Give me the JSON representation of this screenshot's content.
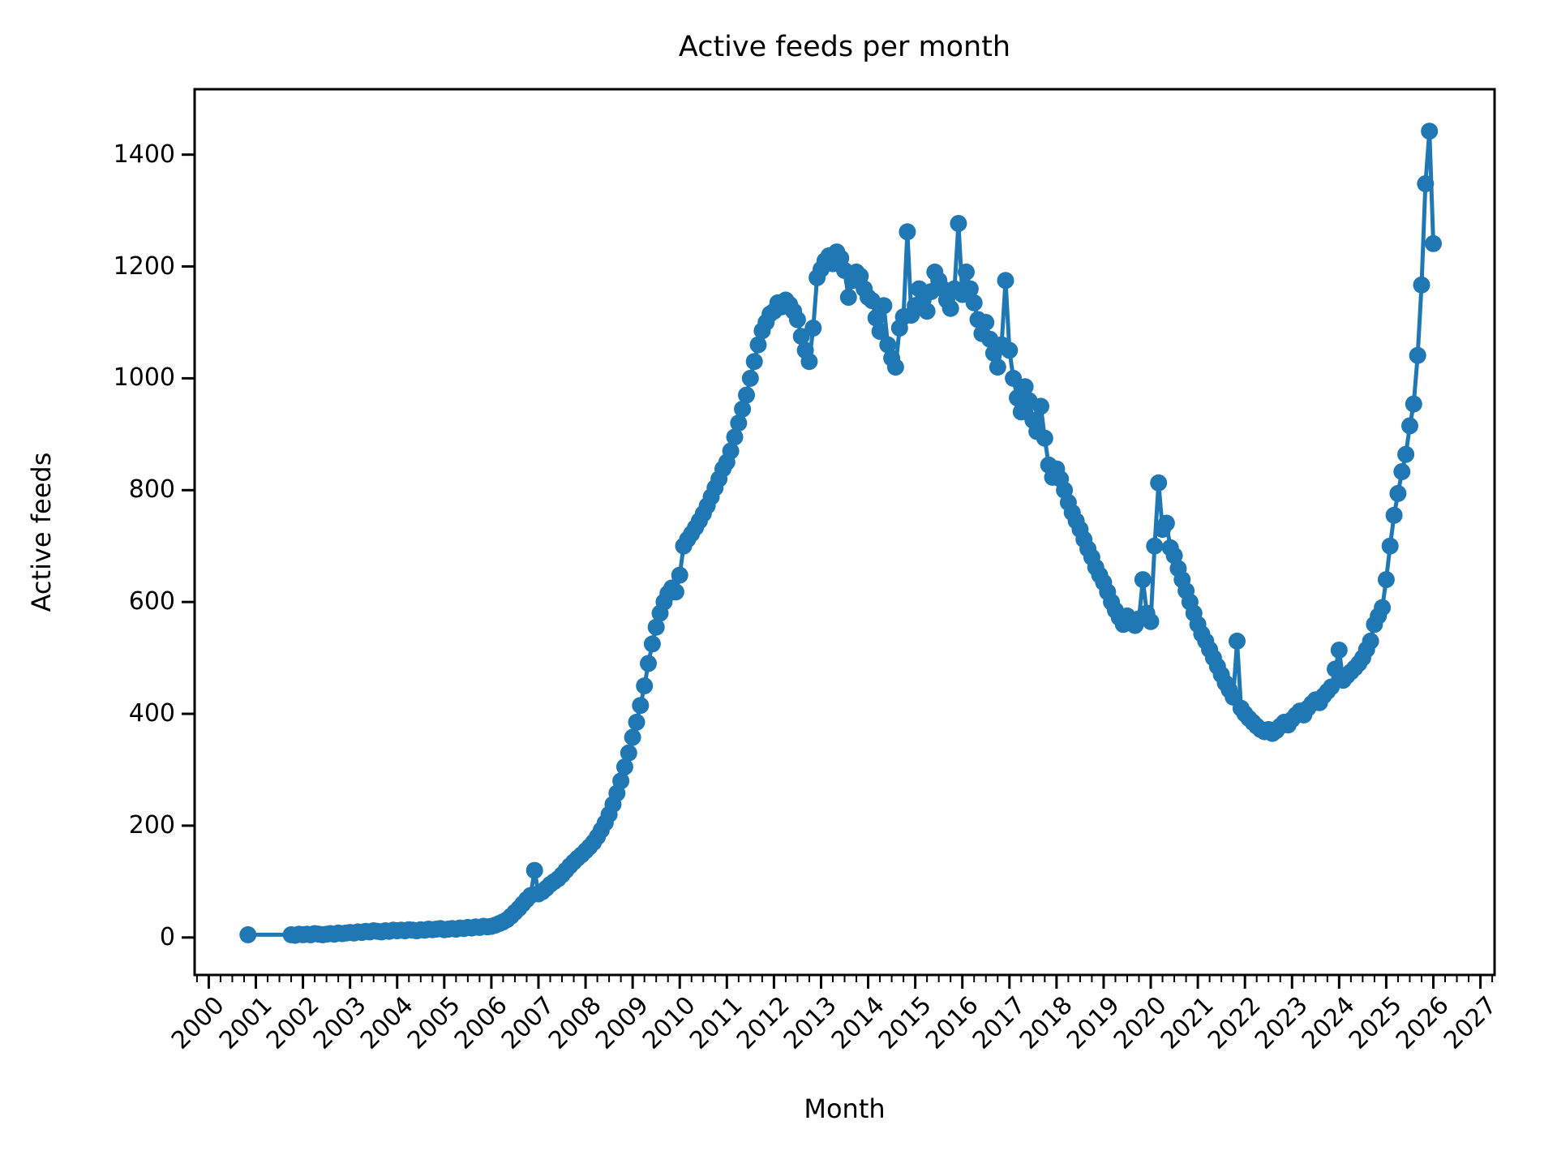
{
  "figure": {
    "title": "Active feeds per month",
    "background_color": "#ffffff",
    "frame_color": "#000000"
  },
  "chart_data": {
    "type": "line",
    "title": "Active feeds per month",
    "xlabel": "Month",
    "ylabel": "Active feeds",
    "grid": false,
    "legend": null,
    "marker": "o",
    "line_color": "#1f77b4",
    "xlim": [
      1999.7,
      2027.3
    ],
    "ylim": [
      -67,
      1517
    ],
    "x_ticks": [
      2000,
      2001,
      2002,
      2003,
      2004,
      2005,
      2006,
      2007,
      2008,
      2009,
      2010,
      2011,
      2012,
      2013,
      2014,
      2015,
      2016,
      2017,
      2018,
      2019,
      2020,
      2021,
      2022,
      2023,
      2024,
      2025,
      2026,
      2027
    ],
    "x_minor_tick_interval": 0.25,
    "x_tick_rotation": 45,
    "y_ticks": [
      0,
      200,
      400,
      600,
      800,
      1000,
      1200,
      1400
    ],
    "series": [
      {
        "name": "active-feeds",
        "color": "#1f77b4",
        "points": [
          [
            2000.833,
            5
          ],
          [
            2001.75,
            5
          ],
          [
            2001.833,
            4
          ],
          [
            2001.917,
            6
          ],
          [
            2002.0,
            5
          ],
          [
            2002.083,
            6
          ],
          [
            2002.167,
            5
          ],
          [
            2002.25,
            7
          ],
          [
            2002.333,
            6
          ],
          [
            2002.417,
            5
          ],
          [
            2002.5,
            6
          ],
          [
            2002.583,
            7
          ],
          [
            2002.667,
            6
          ],
          [
            2002.75,
            8
          ],
          [
            2002.833,
            7
          ],
          [
            2002.917,
            8
          ],
          [
            2003.0,
            9
          ],
          [
            2003.083,
            8
          ],
          [
            2003.167,
            10
          ],
          [
            2003.25,
            9
          ],
          [
            2003.333,
            11
          ],
          [
            2003.417,
            10
          ],
          [
            2003.5,
            12
          ],
          [
            2003.583,
            11
          ],
          [
            2003.667,
            10
          ],
          [
            2003.75,
            12
          ],
          [
            2003.833,
            11
          ],
          [
            2003.917,
            13
          ],
          [
            2004.0,
            12
          ],
          [
            2004.083,
            13
          ],
          [
            2004.167,
            12
          ],
          [
            2004.25,
            14
          ],
          [
            2004.333,
            13
          ],
          [
            2004.417,
            12
          ],
          [
            2004.5,
            14
          ],
          [
            2004.583,
            13
          ],
          [
            2004.667,
            15
          ],
          [
            2004.75,
            14
          ],
          [
            2004.833,
            15
          ],
          [
            2004.917,
            16
          ],
          [
            2005.0,
            14
          ],
          [
            2005.083,
            15
          ],
          [
            2005.167,
            16
          ],
          [
            2005.25,
            15
          ],
          [
            2005.333,
            17
          ],
          [
            2005.417,
            16
          ],
          [
            2005.5,
            18
          ],
          [
            2005.583,
            17
          ],
          [
            2005.667,
            19
          ],
          [
            2005.75,
            18
          ],
          [
            2005.833,
            20
          ],
          [
            2005.917,
            19
          ],
          [
            2006.0,
            20
          ],
          [
            2006.083,
            22
          ],
          [
            2006.167,
            25
          ],
          [
            2006.25,
            28
          ],
          [
            2006.333,
            32
          ],
          [
            2006.417,
            38
          ],
          [
            2006.5,
            45
          ],
          [
            2006.583,
            52
          ],
          [
            2006.667,
            60
          ],
          [
            2006.75,
            68
          ],
          [
            2006.833,
            75
          ],
          [
            2006.917,
            120
          ],
          [
            2007.0,
            78
          ],
          [
            2007.083,
            82
          ],
          [
            2007.167,
            88
          ],
          [
            2007.25,
            95
          ],
          [
            2007.333,
            100
          ],
          [
            2007.417,
            105
          ],
          [
            2007.5,
            112
          ],
          [
            2007.583,
            120
          ],
          [
            2007.667,
            128
          ],
          [
            2007.75,
            135
          ],
          [
            2007.833,
            142
          ],
          [
            2007.917,
            148
          ],
          [
            2008.0,
            155
          ],
          [
            2008.083,
            162
          ],
          [
            2008.167,
            170
          ],
          [
            2008.25,
            180
          ],
          [
            2008.333,
            192
          ],
          [
            2008.417,
            205
          ],
          [
            2008.5,
            220
          ],
          [
            2008.583,
            238
          ],
          [
            2008.667,
            258
          ],
          [
            2008.75,
            280
          ],
          [
            2008.833,
            305
          ],
          [
            2008.917,
            330
          ],
          [
            2009.0,
            358
          ],
          [
            2009.083,
            385
          ],
          [
            2009.167,
            415
          ],
          [
            2009.25,
            450
          ],
          [
            2009.333,
            490
          ],
          [
            2009.417,
            525
          ],
          [
            2009.5,
            555
          ],
          [
            2009.583,
            580
          ],
          [
            2009.667,
            600
          ],
          [
            2009.75,
            615
          ],
          [
            2009.833,
            625
          ],
          [
            2009.917,
            618
          ],
          [
            2010.0,
            648
          ],
          [
            2010.083,
            700
          ],
          [
            2010.167,
            712
          ],
          [
            2010.25,
            722
          ],
          [
            2010.333,
            733
          ],
          [
            2010.417,
            745
          ],
          [
            2010.5,
            758
          ],
          [
            2010.583,
            772
          ],
          [
            2010.667,
            788
          ],
          [
            2010.75,
            804
          ],
          [
            2010.833,
            820
          ],
          [
            2010.917,
            838
          ],
          [
            2011.0,
            850
          ],
          [
            2011.083,
            870
          ],
          [
            2011.167,
            895
          ],
          [
            2011.25,
            920
          ],
          [
            2011.333,
            945
          ],
          [
            2011.417,
            970
          ],
          [
            2011.5,
            1000
          ],
          [
            2011.583,
            1030
          ],
          [
            2011.667,
            1060
          ],
          [
            2011.75,
            1085
          ],
          [
            2011.833,
            1100
          ],
          [
            2011.917,
            1115
          ],
          [
            2012.0,
            1120
          ],
          [
            2012.083,
            1135
          ],
          [
            2012.167,
            1128
          ],
          [
            2012.25,
            1140
          ],
          [
            2012.333,
            1132
          ],
          [
            2012.417,
            1120
          ],
          [
            2012.5,
            1105
          ],
          [
            2012.583,
            1075
          ],
          [
            2012.667,
            1050
          ],
          [
            2012.75,
            1030
          ],
          [
            2012.833,
            1090
          ],
          [
            2012.917,
            1180
          ],
          [
            2013.0,
            1195
          ],
          [
            2013.083,
            1210
          ],
          [
            2013.167,
            1219
          ],
          [
            2013.25,
            1205
          ],
          [
            2013.333,
            1226
          ],
          [
            2013.417,
            1215
          ],
          [
            2013.5,
            1193
          ],
          [
            2013.583,
            1145
          ],
          [
            2013.667,
            1175
          ],
          [
            2013.75,
            1190
          ],
          [
            2013.833,
            1183
          ],
          [
            2013.917,
            1160
          ],
          [
            2014.0,
            1145
          ],
          [
            2014.083,
            1139
          ],
          [
            2014.167,
            1108
          ],
          [
            2014.25,
            1084
          ],
          [
            2014.333,
            1130
          ],
          [
            2014.417,
            1060
          ],
          [
            2014.5,
            1036
          ],
          [
            2014.583,
            1020
          ],
          [
            2014.667,
            1090
          ],
          [
            2014.75,
            1110
          ],
          [
            2014.833,
            1262
          ],
          [
            2014.917,
            1113
          ],
          [
            2015.0,
            1130
          ],
          [
            2015.083,
            1160
          ],
          [
            2015.167,
            1140
          ],
          [
            2015.25,
            1120
          ],
          [
            2015.333,
            1155
          ],
          [
            2015.417,
            1190
          ],
          [
            2015.5,
            1175
          ],
          [
            2015.583,
            1160
          ],
          [
            2015.667,
            1140
          ],
          [
            2015.75,
            1125
          ],
          [
            2015.833,
            1160
          ],
          [
            2015.917,
            1277
          ],
          [
            2016.0,
            1150
          ],
          [
            2016.083,
            1190
          ],
          [
            2016.167,
            1160
          ],
          [
            2016.25,
            1135
          ],
          [
            2016.333,
            1105
          ],
          [
            2016.417,
            1080
          ],
          [
            2016.5,
            1100
          ],
          [
            2016.583,
            1070
          ],
          [
            2016.667,
            1045
          ],
          [
            2016.75,
            1020
          ],
          [
            2016.833,
            1060
          ],
          [
            2016.917,
            1175
          ],
          [
            2017.0,
            1050
          ],
          [
            2017.083,
            1000
          ],
          [
            2017.167,
            965
          ],
          [
            2017.25,
            940
          ],
          [
            2017.333,
            985
          ],
          [
            2017.417,
            960
          ],
          [
            2017.5,
            925
          ],
          [
            2017.583,
            905
          ],
          [
            2017.667,
            950
          ],
          [
            2017.75,
            893
          ],
          [
            2017.833,
            845
          ],
          [
            2017.917,
            823
          ],
          [
            2018.0,
            838
          ],
          [
            2018.083,
            820
          ],
          [
            2018.167,
            800
          ],
          [
            2018.25,
            778
          ],
          [
            2018.333,
            760
          ],
          [
            2018.417,
            745
          ],
          [
            2018.5,
            730
          ],
          [
            2018.583,
            712
          ],
          [
            2018.667,
            695
          ],
          [
            2018.75,
            680
          ],
          [
            2018.833,
            662
          ],
          [
            2018.917,
            648
          ],
          [
            2019.0,
            635
          ],
          [
            2019.083,
            618
          ],
          [
            2019.167,
            600
          ],
          [
            2019.25,
            585
          ],
          [
            2019.333,
            572
          ],
          [
            2019.417,
            560
          ],
          [
            2019.5,
            575
          ],
          [
            2019.583,
            565
          ],
          [
            2019.667,
            558
          ],
          [
            2019.75,
            570
          ],
          [
            2019.833,
            640
          ],
          [
            2019.917,
            580
          ],
          [
            2020.0,
            565
          ],
          [
            2020.083,
            700
          ],
          [
            2020.167,
            813
          ],
          [
            2020.25,
            730
          ],
          [
            2020.333,
            741
          ],
          [
            2020.417,
            697
          ],
          [
            2020.5,
            683
          ],
          [
            2020.583,
            660
          ],
          [
            2020.667,
            640
          ],
          [
            2020.75,
            620
          ],
          [
            2020.833,
            600
          ],
          [
            2020.917,
            580
          ],
          [
            2021.0,
            560
          ],
          [
            2021.083,
            543
          ],
          [
            2021.167,
            530
          ],
          [
            2021.25,
            515
          ],
          [
            2021.333,
            500
          ],
          [
            2021.417,
            485
          ],
          [
            2021.5,
            470
          ],
          [
            2021.583,
            455
          ],
          [
            2021.667,
            443
          ],
          [
            2021.75,
            430
          ],
          [
            2021.833,
            530
          ],
          [
            2021.917,
            410
          ],
          [
            2022.0,
            400
          ],
          [
            2022.083,
            392
          ],
          [
            2022.167,
            385
          ],
          [
            2022.25,
            378
          ],
          [
            2022.333,
            372
          ],
          [
            2022.417,
            368
          ],
          [
            2022.5,
            372
          ],
          [
            2022.583,
            365
          ],
          [
            2022.667,
            370
          ],
          [
            2022.75,
            378
          ],
          [
            2022.833,
            385
          ],
          [
            2022.917,
            380
          ],
          [
            2023.0,
            390
          ],
          [
            2023.083,
            398
          ],
          [
            2023.167,
            405
          ],
          [
            2023.25,
            398
          ],
          [
            2023.333,
            410
          ],
          [
            2023.417,
            418
          ],
          [
            2023.5,
            425
          ],
          [
            2023.583,
            420
          ],
          [
            2023.667,
            432
          ],
          [
            2023.75,
            440
          ],
          [
            2023.833,
            448
          ],
          [
            2023.917,
            480
          ],
          [
            2024.0,
            514
          ],
          [
            2024.083,
            460
          ],
          [
            2024.167,
            468
          ],
          [
            2024.25,
            475
          ],
          [
            2024.333,
            482
          ],
          [
            2024.417,
            490
          ],
          [
            2024.5,
            500
          ],
          [
            2024.583,
            515
          ],
          [
            2024.667,
            530
          ],
          [
            2024.75,
            560
          ],
          [
            2024.833,
            575
          ],
          [
            2024.917,
            590
          ],
          [
            2025.0,
            640
          ],
          [
            2025.083,
            700
          ],
          [
            2025.167,
            755
          ],
          [
            2025.25,
            794
          ],
          [
            2025.333,
            833
          ],
          [
            2025.417,
            864
          ],
          [
            2025.5,
            915
          ],
          [
            2025.583,
            954
          ],
          [
            2025.667,
            1041
          ],
          [
            2025.75,
            1167
          ],
          [
            2025.833,
            1348
          ],
          [
            2025.917,
            1442
          ],
          [
            2026.0,
            1241
          ]
        ]
      }
    ]
  }
}
